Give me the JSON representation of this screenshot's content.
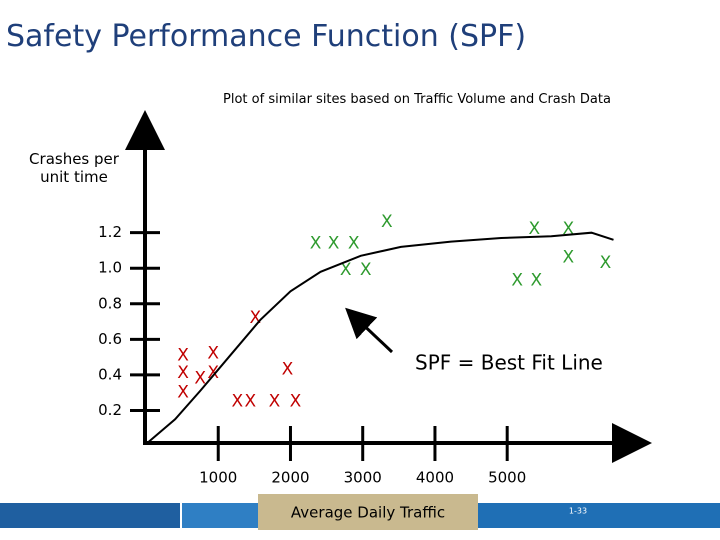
{
  "slide": {
    "title": "Safety Performance Function (SPF)",
    "page_number": "1-33"
  },
  "chart_data": {
    "type": "scatter",
    "subtitle": "Plot of similar sites based on Traffic Volume and Crash Data",
    "x_label": "Average Daily Traffic",
    "y_label": "Crashes per unit time",
    "marker": "X",
    "xlim": [
      0,
      6700
    ],
    "ylim": [
      0,
      1.8
    ],
    "xticks": [
      1000,
      2000,
      3000,
      4000,
      5000
    ],
    "yticks": [
      0.2,
      0.4,
      0.6,
      0.8,
      {
        "value": 1,
        "label": "1.0"
      },
      1.2
    ],
    "series": [
      {
        "color": "#c00000",
        "x": [
          514,
          931,
          514,
          750,
          931,
          514,
          1958,
          1264,
          1444,
          1778,
          2069,
          1514
        ],
        "values": [
          0.51,
          0.52,
          0.41,
          0.38,
          0.41,
          0.3,
          0.43,
          0.25,
          0.25,
          0.25,
          0.25,
          0.72
        ]
      },
      {
        "color": "#2e9a2e",
        "x": [
          2347,
          2597,
          2875,
          2764,
          3042,
          3333,
          5375,
          5847,
          5139,
          5403,
          5847,
          6361
        ],
        "values": [
          1.14,
          1.14,
          1.14,
          0.99,
          0.99,
          1.26,
          1.22,
          1.22,
          0.93,
          0.93,
          1.06,
          1.03
        ]
      },
      {
        "type": "line",
        "color": "#000000",
        "x": [
          28,
          403,
          750,
          1167,
          1583,
          2000,
          2417,
          2972,
          3528,
          4222,
          4917,
          5611,
          6167,
          6472
        ],
        "values": [
          0.02,
          0.15,
          0.31,
          0.51,
          0.71,
          0.87,
          0.98,
          1.07,
          1.12,
          1.15,
          1.17,
          1.18,
          1.2,
          1.16
        ]
      }
    ],
    "annotations": [
      {
        "text": "SPF = Best Fit Line"
      }
    ]
  }
}
